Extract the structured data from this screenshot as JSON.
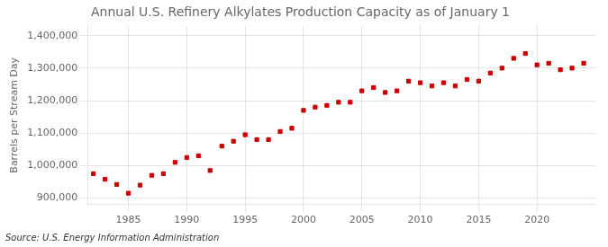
{
  "chart_data": {
    "type": "scatter",
    "title": "Annual U.S. Refinery Alkylates Production Capacity as of January 1",
    "ylabel": "Barrels per Stream Day",
    "annotations": [
      "Source: U.S. Energy Information Administration"
    ],
    "x": [
      1982,
      1983,
      1984,
      1985,
      1986,
      1987,
      1988,
      1989,
      1990,
      1991,
      1992,
      1993,
      1994,
      1995,
      1996,
      1997,
      1998,
      1999,
      2000,
      2001,
      2002,
      2003,
      2004,
      2005,
      2006,
      2007,
      2008,
      2009,
      2010,
      2011,
      2012,
      2013,
      2014,
      2015,
      2016,
      2017,
      2018,
      2019,
      2020,
      2021,
      2022,
      2023,
      2024
    ],
    "values": [
      975000,
      958000,
      942000,
      915000,
      940000,
      970000,
      975000,
      1010000,
      1025000,
      1030000,
      985000,
      1060000,
      1075000,
      1095000,
      1080000,
      1080000,
      1105000,
      1115000,
      1170000,
      1180000,
      1185000,
      1195000,
      1195000,
      1230000,
      1240000,
      1225000,
      1230000,
      1260000,
      1255000,
      1245000,
      1255000,
      1245000,
      1265000,
      1260000,
      1285000,
      1300000,
      1330000,
      1345000,
      1310000,
      1315000,
      1295000,
      1300000,
      1315000
    ],
    "color": "#cc0000",
    "marker": "square",
    "xlim": [
      1981.5,
      2025
    ],
    "xticks": [
      1985,
      1990,
      1995,
      2000,
      2005,
      2010,
      2015,
      2020
    ],
    "ylim": [
      880000,
      1430000
    ],
    "yticks": [
      {
        "value": 900000,
        "label": "900,000"
      },
      {
        "value": 1000000,
        "label": "1,000,000"
      },
      {
        "value": 1100000,
        "label": "1,100,000"
      },
      {
        "value": 1200000,
        "label": "1,200,000"
      },
      {
        "value": 1300000,
        "label": "1,300,000"
      },
      {
        "value": 1400000,
        "label": "1,400,000"
      }
    ],
    "grid": true
  }
}
